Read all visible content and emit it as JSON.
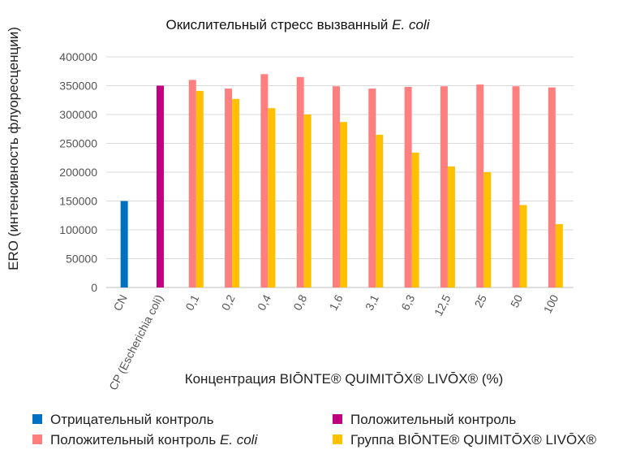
{
  "chart_data": {
    "type": "bar",
    "title_main": "Окислительный стресс вызванный",
    "title_italic": "E. coli",
    "ylabel": "ERO (интенсивность флуоресценции)",
    "xlabel": "Концентрация BIŌNTE® QUIMITŌX® LIVŌX® (%)",
    "ylim": [
      0,
      400000
    ],
    "yticks": [
      "0",
      "50000",
      "100000",
      "150000",
      "200000",
      "250000",
      "300000",
      "350000",
      "400000"
    ],
    "grid": true,
    "categories": [
      "CN",
      "CP (Escherichia coli)",
      "0,1",
      "0,2",
      "0,4",
      "0,8",
      "1,6",
      "3,1",
      "6,3",
      "12,5",
      "25",
      "50",
      "100"
    ],
    "series": [
      {
        "name": "Отрицательный контроль",
        "color": "#0070c0",
        "values": [
          150000,
          null,
          null,
          null,
          null,
          null,
          null,
          null,
          null,
          null,
          null,
          null,
          null
        ]
      },
      {
        "name": "Положительный контроль",
        "color": "#c00080",
        "values": [
          null,
          350000,
          null,
          null,
          null,
          null,
          null,
          null,
          null,
          null,
          null,
          null,
          null
        ]
      },
      {
        "name": "Положительный контроль E. coli",
        "color": "#ff7f7f",
        "values": [
          null,
          null,
          360000,
          345000,
          370000,
          365000,
          349000,
          345000,
          348000,
          349000,
          352000,
          349000,
          347000
        ]
      },
      {
        "name": "Группа BIŌNTE® QUIMITŌX® LIVŌX®",
        "color": "#ffc000",
        "values": [
          null,
          null,
          341000,
          327000,
          311000,
          300000,
          287000,
          265000,
          234000,
          210000,
          200000,
          143000,
          110000
        ]
      }
    ]
  },
  "legend": {
    "items": [
      {
        "text": "Отрицательный контроль",
        "italic": "",
        "color": "#0070c0"
      },
      {
        "text": "Положительный контроль",
        "italic": "",
        "color": "#c00080"
      },
      {
        "text": "Положительный контроль ",
        "italic": "E. coli",
        "color": "#ff7f7f"
      },
      {
        "text": "Группа BIŌNTE® QUIMITŌX® LIVŌX®",
        "italic": "",
        "color": "#ffc000"
      }
    ]
  }
}
